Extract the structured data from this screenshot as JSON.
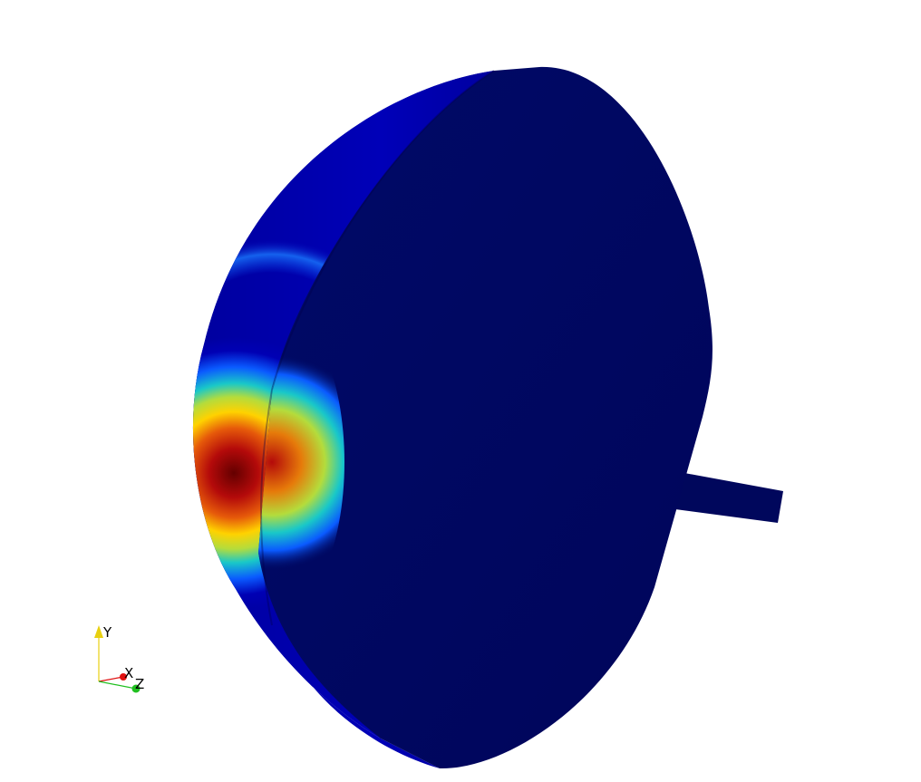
{
  "render_view": {
    "background": "#ffffff",
    "colormap": [
      "#00005a",
      "#0000b4",
      "#0a5aff",
      "#19c8c8",
      "#b4dc3c",
      "#ffd200",
      "#e65a0a",
      "#b40a0a",
      "#640000"
    ],
    "mesh_base_color": "#00075c"
  },
  "orientation_axes": {
    "x_label": "X",
    "y_label": "Y",
    "z_label": "Z",
    "x_color": "#e01010",
    "y_color": "#e8d010",
    "z_color": "#20c020"
  }
}
